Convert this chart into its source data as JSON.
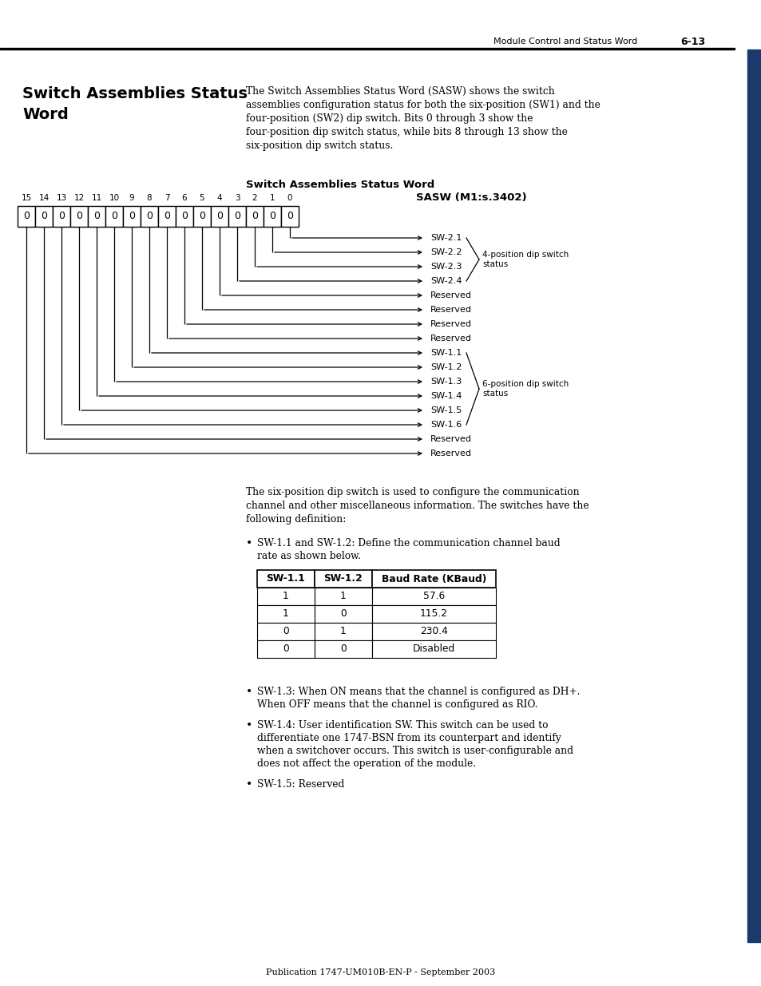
{
  "page_title": "Module Control and Status Word",
  "page_number": "6-13",
  "section_title_line1": "Switch Assemblies Status",
  "section_title_line2": "Word",
  "intro_text": [
    "The Switch Assemblies Status Word (SASW) shows the switch",
    "assemblies configuration status for both the six-position (SW1) and the",
    "four-position (SW2) dip switch. Bits 0 through 3 show the",
    "four-position dip switch status, while bits 8 through 13 show the",
    "six-position dip switch status."
  ],
  "diagram_title": "Switch Assemblies Status Word",
  "sasw_label": "SASW (M1:s.3402)",
  "bit_labels": [
    "15",
    "14",
    "13",
    "12",
    "11",
    "10",
    "9",
    "8",
    "7",
    "6",
    "5",
    "4",
    "3",
    "2",
    "1",
    "0"
  ],
  "bit_values": [
    "0",
    "0",
    "0",
    "0",
    "0",
    "0",
    "0",
    "0",
    "0",
    "0",
    "0",
    "0",
    "0",
    "0",
    "0",
    "0"
  ],
  "signal_labels": [
    "SW-2.1",
    "SW-2.2",
    "SW-2.3",
    "SW-2.4",
    "Reserved",
    "Reserved",
    "Reserved",
    "Reserved",
    "SW-1.1",
    "SW-1.2",
    "SW-1.3",
    "SW-1.4",
    "SW-1.5",
    "SW-1.6",
    "Reserved",
    "Reserved"
  ],
  "group1_label": "4-position dip switch\nstatus",
  "group2_label": "6-position dip switch\nstatus",
  "para2": [
    "The six-position dip switch is used to configure the communication",
    "channel and other miscellaneous information. The switches have the",
    "following definition:"
  ],
  "bullet1_lines": [
    "SW-1.1 and SW-1.2: Define the communication channel baud",
    "rate as shown below."
  ],
  "table_headers": [
    "SW-1.1",
    "SW-1.2",
    "Baud Rate (KBaud)"
  ],
  "table_rows": [
    [
      "1",
      "1",
      "57.6"
    ],
    [
      "1",
      "0",
      "115.2"
    ],
    [
      "0",
      "1",
      "230.4"
    ],
    [
      "0",
      "0",
      "Disabled"
    ]
  ],
  "bullet2_lines": [
    "SW-1.3: When ON means that the channel is configured as DH+.",
    "When OFF means that the channel is configured as RIO."
  ],
  "bullet3_lines": [
    "SW-1.4: User identification SW. This switch can be used to",
    "differentiate one 1747-BSN from its counterpart and identify",
    "when a switchover occurs. This switch is user-configurable and",
    "does not affect the operation of the module."
  ],
  "bullet4": "SW-1.5: Reserved",
  "footer": "Publication 1747-UM010B-EN-P - September 2003",
  "bg_color": "#ffffff",
  "sidebar_color": "#1a3a6b"
}
